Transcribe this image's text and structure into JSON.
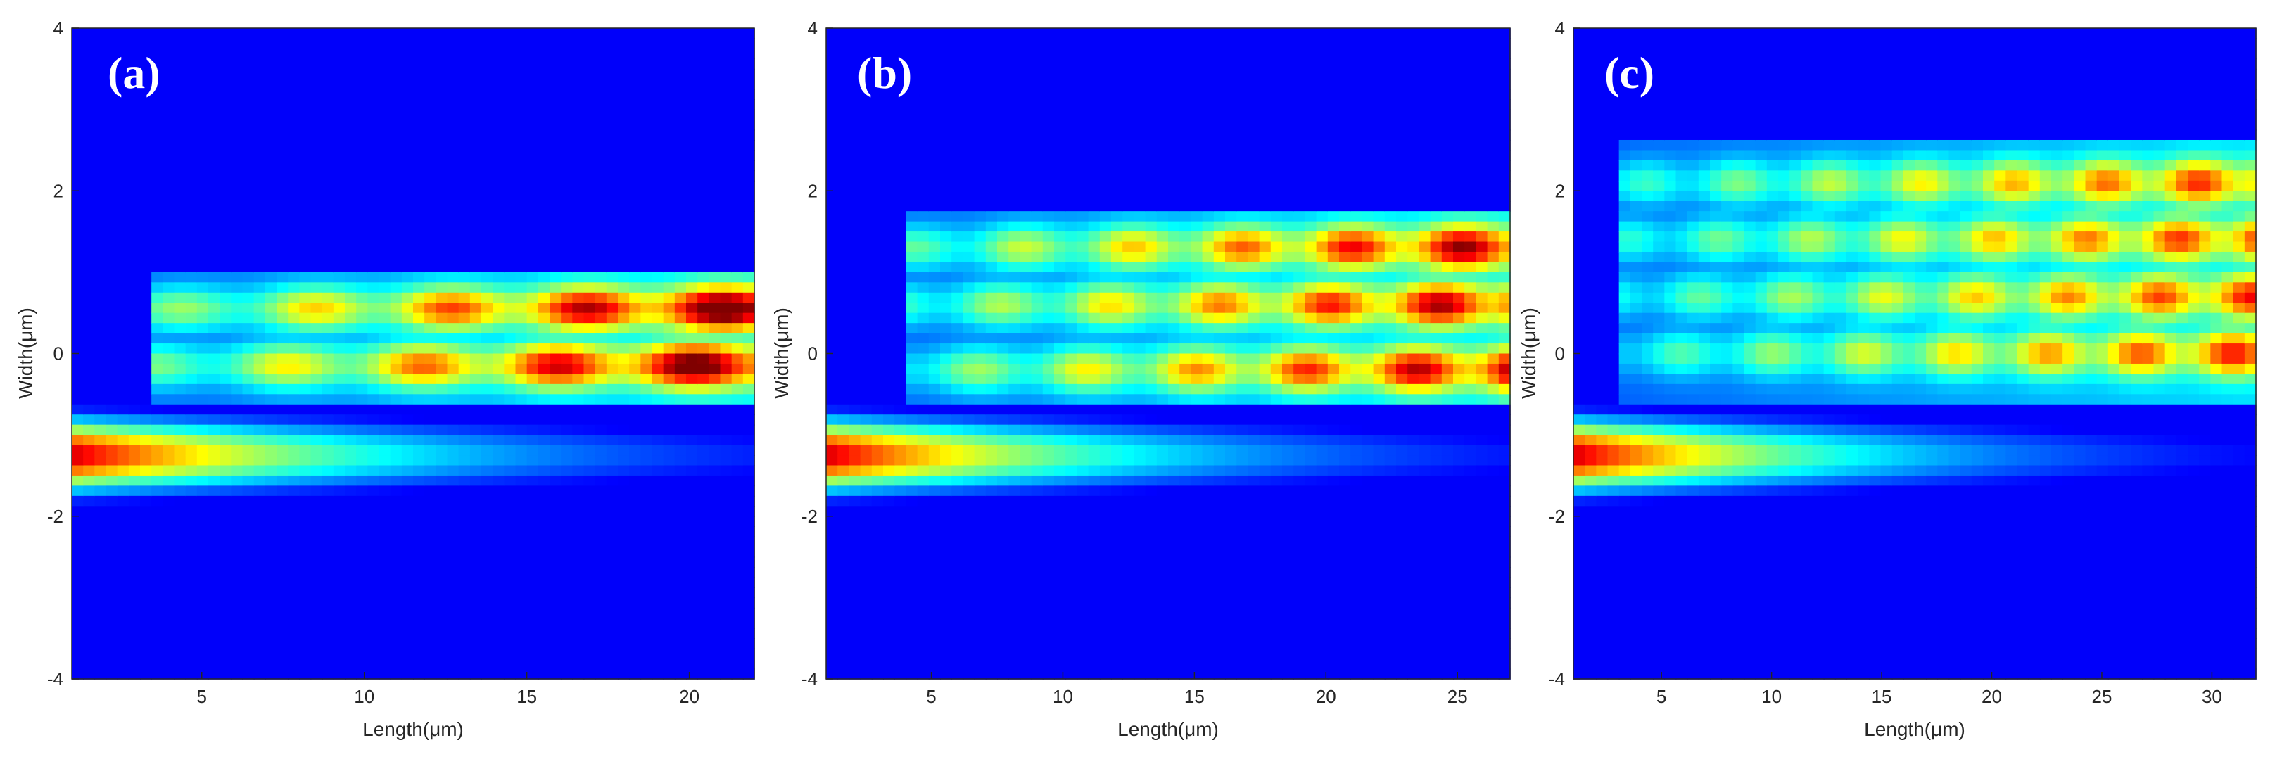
{
  "chart_data": [
    {
      "type": "heatmap",
      "panel_label": "(a)",
      "xlabel": "Length(μm)",
      "ylabel": "Width(μm)",
      "xlim": [
        1,
        22
      ],
      "ylim": [
        -4,
        4
      ],
      "xticks": [
        5,
        10,
        15,
        20
      ],
      "yticks": [
        -4,
        -2,
        0,
        2,
        4
      ],
      "colormap": "jet",
      "input_waveguide": {
        "center_y": -1.25,
        "half_width": 0.5,
        "decay_length": 16
      },
      "upper_region": {
        "start_x": 3.5,
        "y_min": -0.6,
        "y_max": 1.05,
        "lobe_centers": [
          0.55,
          -0.15
        ],
        "peak": 0.8
      }
    },
    {
      "type": "heatmap",
      "panel_label": "(b)",
      "xlabel": "Length(μm)",
      "ylabel": "Width(μm)",
      "xlim": [
        1,
        27
      ],
      "ylim": [
        -4,
        4
      ],
      "xticks": [
        5,
        10,
        15,
        20,
        25
      ],
      "yticks": [
        -4,
        -2,
        0,
        2,
        4
      ],
      "colormap": "jet",
      "input_waveguide": {
        "center_y": -1.25,
        "half_width": 0.5,
        "decay_length": 19
      },
      "upper_region": {
        "start_x": 4,
        "y_min": -0.6,
        "y_max": 1.8,
        "lobe_centers": [
          1.3,
          0.6,
          -0.2
        ],
        "peak": 0.7
      }
    },
    {
      "type": "heatmap",
      "panel_label": "(c)",
      "xlabel": "Length(μm)",
      "ylabel": "Width(μm)",
      "xlim": [
        1,
        32
      ],
      "ylim": [
        -4,
        4
      ],
      "xticks": [
        5,
        10,
        15,
        20,
        25,
        30
      ],
      "yticks": [
        -4,
        -2,
        0,
        2,
        4
      ],
      "colormap": "jet",
      "input_waveguide": {
        "center_y": -1.25,
        "half_width": 0.5,
        "decay_length": 21
      },
      "upper_region": {
        "start_x": 3,
        "y_min": -0.6,
        "y_max": 2.6,
        "lobe_centers": [
          2.1,
          1.4,
          0.7,
          0.0
        ],
        "peak": 0.55
      }
    }
  ]
}
